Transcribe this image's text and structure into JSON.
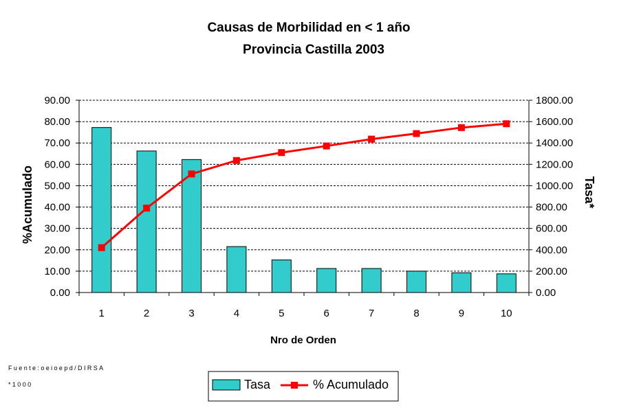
{
  "chart_data": {
    "type": "bar",
    "title": "Causas de Morbilidad en < 1 año",
    "subtitle": "Provincia Castilla 2003",
    "xlabel": "Nro de Orden",
    "ylabel_left": "%Acumulado",
    "ylabel_right": "Tasa*",
    "categories": [
      "1",
      "2",
      "3",
      "4",
      "5",
      "6",
      "7",
      "8",
      "9",
      "10"
    ],
    "ylim_left": [
      0,
      90
    ],
    "ylim_right": [
      0,
      1800
    ],
    "left_ticks": [
      "0.00",
      "10.00",
      "20.00",
      "30.00",
      "40.00",
      "50.00",
      "60.00",
      "70.00",
      "80.00",
      "90.00"
    ],
    "right_ticks": [
      "0.00",
      "200.00",
      "400.00",
      "600.00",
      "800.00",
      "1000.00",
      "1200.00",
      "1400.00",
      "1600.00",
      "1800.00"
    ],
    "grid": true,
    "legend_position": "bottom",
    "series": [
      {
        "name": "Tasa",
        "kind": "bar",
        "axis": "right",
        "color": "#33CCCC",
        "values": [
          1545,
          1325,
          1245,
          430,
          305,
          225,
          225,
          200,
          185,
          175
        ]
      },
      {
        "name": "% Acumulado",
        "kind": "line",
        "axis": "left",
        "color": "#FF0000",
        "marker": "square",
        "values": [
          21.0,
          39.5,
          55.5,
          61.8,
          65.5,
          68.6,
          71.8,
          74.4,
          77.2,
          79.0
        ]
      }
    ]
  },
  "footnotes": {
    "source": "Fuente:oeioepd/DIRSA",
    "scale": "*1000"
  }
}
